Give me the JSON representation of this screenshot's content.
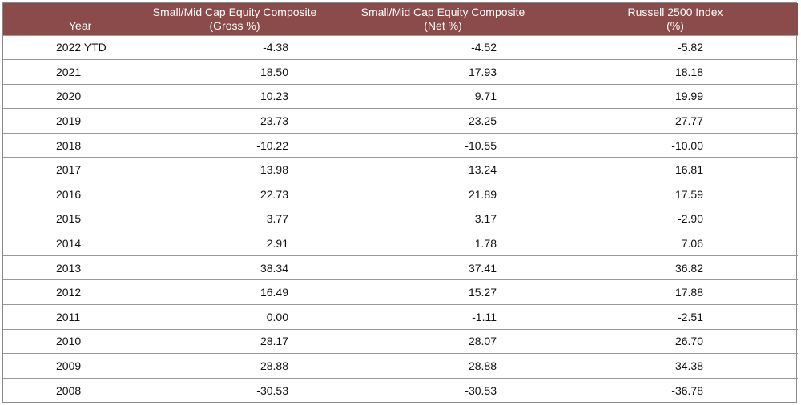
{
  "table": {
    "headers": {
      "year": "Year",
      "gross_line1": "Small/Mid Cap Equity Composite",
      "gross_line2": "(Gross %)",
      "net_line1": "Small/Mid Cap Equity Composite",
      "net_line2": "(Net %)",
      "index_line1": "Russell 2500 Index",
      "index_line2": "(%)"
    },
    "rows": [
      {
        "year": "2022 YTD",
        "gross": "-4.38",
        "net": "-4.52",
        "index": "-5.82"
      },
      {
        "year": "2021",
        "gross": "18.50",
        "net": "17.93",
        "index": "18.18"
      },
      {
        "year": "2020",
        "gross": "10.23",
        "net": "9.71",
        "index": "19.99"
      },
      {
        "year": "2019",
        "gross": "23.73",
        "net": "23.25",
        "index": "27.77"
      },
      {
        "year": "2018",
        "gross": "-10.22",
        "net": "-10.55",
        "index": "-10.00"
      },
      {
        "year": "2017",
        "gross": "13.98",
        "net": "13.24",
        "index": "16.81"
      },
      {
        "year": "2016",
        "gross": "22.73",
        "net": "21.89",
        "index": "17.59"
      },
      {
        "year": "2015",
        "gross": "3.77",
        "net": "3.17",
        "index": "-2.90"
      },
      {
        "year": "2014",
        "gross": "2.91",
        "net": "1.78",
        "index": "7.06"
      },
      {
        "year": "2013",
        "gross": "38.34",
        "net": "37.41",
        "index": "36.82"
      },
      {
        "year": "2012",
        "gross": "16.49",
        "net": "15.27",
        "index": "17.88"
      },
      {
        "year": "2011",
        "gross": "0.00",
        "net": "-1.11",
        "index": "-2.51"
      },
      {
        "year": "2010",
        "gross": "28.17",
        "net": "28.07",
        "index": "26.70"
      },
      {
        "year": "2009",
        "gross": "28.88",
        "net": "28.88",
        "index": "34.38"
      },
      {
        "year": "2008",
        "gross": "-30.53",
        "net": "-30.53",
        "index": "-36.78"
      }
    ],
    "header_color": "#8b4b4b"
  }
}
